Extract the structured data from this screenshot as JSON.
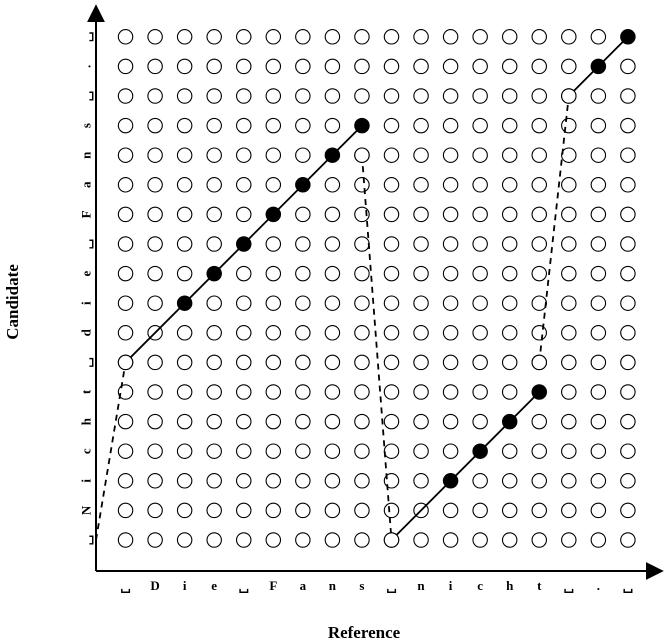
{
  "chart_data": {
    "type": "alignment-grid",
    "xlabel": "Reference",
    "ylabel": "Candidate",
    "x_tokens": [
      "␣",
      "D",
      "i",
      "e",
      "␣",
      "F",
      "a",
      "n",
      "s",
      "␣",
      "n",
      "i",
      "c",
      "h",
      "t",
      "␣",
      ".",
      "␣"
    ],
    "y_tokens": [
      "␣",
      "N",
      "i",
      "c",
      "h",
      "t",
      "␣",
      "d",
      "i",
      "e",
      "␣",
      "F",
      "a",
      "n",
      "s",
      "␣",
      ".",
      "␣"
    ],
    "columns": 18,
    "rows": 18,
    "filled_points": [
      [
        3,
        8
      ],
      [
        4,
        9
      ],
      [
        5,
        10
      ],
      [
        6,
        11
      ],
      [
        7,
        12
      ],
      [
        8,
        13
      ],
      [
        9,
        14
      ],
      [
        12,
        2
      ],
      [
        13,
        3
      ],
      [
        14,
        4
      ],
      [
        15,
        5
      ],
      [
        17,
        16
      ],
      [
        18,
        17
      ]
    ],
    "solid_segments": [
      [
        [
          1,
          6
        ],
        [
          9,
          14
        ]
      ],
      [
        [
          10,
          0
        ],
        [
          15,
          5
        ]
      ],
      [
        [
          16,
          15
        ],
        [
          18,
          17
        ]
      ]
    ],
    "dashed_segments": [
      [
        [
          0,
          0
        ],
        [
          1,
          6
        ]
      ],
      [
        [
          9,
          13
        ],
        [
          10,
          0
        ]
      ],
      [
        [
          15,
          6
        ],
        [
          16,
          15
        ]
      ]
    ],
    "extra_open_points": [
      [
        10,
        0
      ]
    ],
    "colors": {
      "ink": "#000000",
      "background": "#ffffff"
    }
  }
}
